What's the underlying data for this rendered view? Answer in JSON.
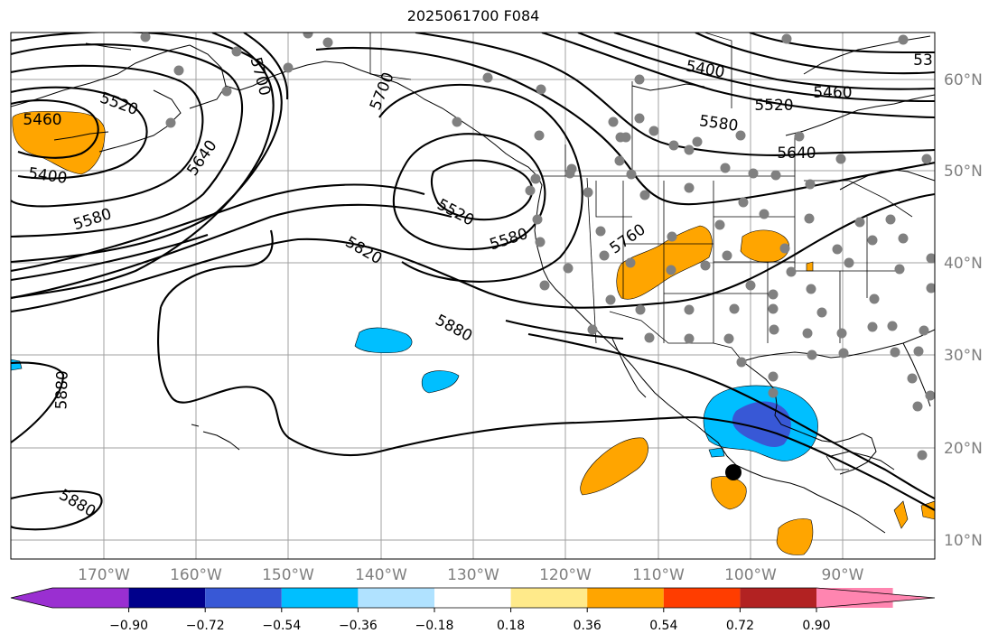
{
  "title": "2025061700 F084",
  "lat_labels": [
    "60°N",
    "50°N",
    "40°N",
    "30°N",
    "20°N",
    "10°N"
  ],
  "lon_labels": [
    "170°W",
    "160°W",
    "150°W",
    "140°W",
    "130°W",
    "120°W",
    "110°W",
    "100°W",
    "90°W"
  ],
  "contour_labels": [
    "5520",
    "5460",
    "5400",
    "5640",
    "5700",
    "5580",
    "5820",
    "5880",
    "5880",
    "5880",
    "5520",
    "5580",
    "5760",
    "5460",
    "5400",
    "5520",
    "5580",
    "5640",
    "5700",
    "53"
  ],
  "colorbar": {
    "colors": [
      "#9a2fd1",
      "#00008b",
      "#3858d6",
      "#00bfff",
      "#b0e2ff",
      "#ffffff",
      "#ffea8a",
      "#ffa500",
      "#ff3d00",
      "#b22222",
      "#ff85b0"
    ],
    "ticks": [
      "−0.90",
      "−0.72",
      "−0.54",
      "−0.36",
      "−0.18",
      "0.18",
      "0.36",
      "0.54",
      "0.72",
      "0.90"
    ]
  },
  "fill_colors": {
    "orange": "#ffa500",
    "lightblue": "#00bfff",
    "blue": "#3858d6",
    "lighter": "#b0e2ff"
  },
  "marker_color": "#808080"
}
